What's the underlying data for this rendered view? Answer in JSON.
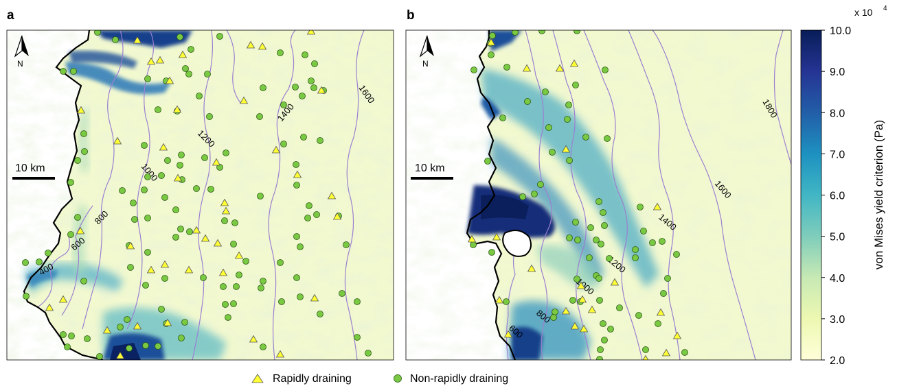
{
  "panels": [
    {
      "id": "a",
      "label": "a",
      "scale_bar_label": "10 km",
      "north_label": "N",
      "contour_labels": [
        "400",
        "600",
        "800",
        "1000",
        "1200",
        "1400",
        "1600"
      ]
    },
    {
      "id": "b",
      "label": "b",
      "scale_bar_label": "10 km",
      "north_label": "N",
      "contour_labels": [
        "600",
        "800",
        "1000",
        "1200",
        "1400",
        "1600",
        "1800"
      ]
    }
  ],
  "colorbar": {
    "title": "von Mises yield criterion (Pa)",
    "multiplier": "x 10",
    "multiplier_exponent": "4",
    "ticks": [
      "10.0",
      "9.0",
      "8.0",
      "7.0",
      "6.0",
      "5.0",
      "4.0",
      "3.0",
      "2.0"
    ],
    "min": 2.0,
    "max": 10.0,
    "colors": [
      "#ffffd9",
      "#edf8b1",
      "#c7e9b4",
      "#7fcdbb",
      "#41b6c4",
      "#1d91c0",
      "#225ea8",
      "#253494",
      "#081d58"
    ]
  },
  "legend": {
    "items": [
      {
        "label": "Rapidly draining",
        "marker": "triangle",
        "color": "#ffff33"
      },
      {
        "label": "Non-rapidly draining",
        "marker": "circle",
        "color": "#7ac943"
      }
    ]
  },
  "style_colors": {
    "contour": "#9b7fd1",
    "coastline": "#000000",
    "ice_base": "#f4f9d2",
    "high_stress": "#0b2a6e"
  }
}
